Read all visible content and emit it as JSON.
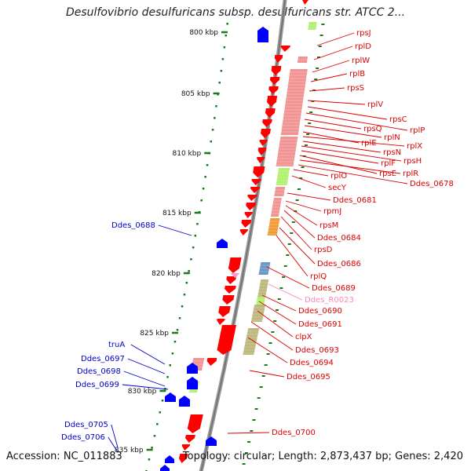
{
  "header": {
    "title": "Desulfovibrio desulfuricans subsp. desulfuricans str. ATCC 2..."
  },
  "footer": {
    "accession": "Accession: NC_011883",
    "summary": "Topology: circular; Length: 2,873,437 bp; Genes: 2,420"
  },
  "colors": {
    "backbone": "#888888",
    "tick": "#1a7a1a",
    "forward_gene": "#0000ff",
    "reverse_gene": "#ff0000",
    "rna": "#ff99cc",
    "label_forward": "#0000cc",
    "label_reverse": "#dd0000",
    "label_rna": "#ff88bb",
    "cog_pink": "#f08888",
    "cog_lime": "#a8f060",
    "cog_khaki": "#b8b070",
    "cog_steel": "#5a8ac0",
    "cog_orange": "#f09020"
  },
  "ruler": [
    {
      "label": "800 kbp"
    },
    {
      "label": "805 kbp"
    },
    {
      "label": "810 kbp"
    },
    {
      "label": "815 kbp"
    },
    {
      "label": "820 kbp"
    },
    {
      "label": "825 kbp"
    },
    {
      "label": "830 kbp"
    },
    {
      "label": "835 kbp"
    }
  ],
  "gene_labels": [
    {
      "text": "rpsJ",
      "strand": "reverse"
    },
    {
      "text": "rplD",
      "strand": "reverse"
    },
    {
      "text": "rplW",
      "strand": "reverse"
    },
    {
      "text": "rplB",
      "strand": "reverse"
    },
    {
      "text": "rpsS",
      "strand": "reverse"
    },
    {
      "text": "rplV",
      "strand": "reverse"
    },
    {
      "text": "rpsC",
      "strand": "reverse"
    },
    {
      "text": "rplP",
      "strand": "reverse"
    },
    {
      "text": "rpsQ",
      "strand": "reverse"
    },
    {
      "text": "rplN",
      "strand": "reverse"
    },
    {
      "text": "rplE",
      "strand": "reverse"
    },
    {
      "text": "rplX",
      "strand": "reverse"
    },
    {
      "text": "rpsN",
      "strand": "reverse"
    },
    {
      "text": "rpsH",
      "strand": "reverse"
    },
    {
      "text": "rplF",
      "strand": "reverse"
    },
    {
      "text": "rpsE",
      "strand": "reverse"
    },
    {
      "text": "rplR",
      "strand": "reverse"
    },
    {
      "text": "Ddes_0678",
      "strand": "reverse"
    },
    {
      "text": "rplO",
      "strand": "reverse"
    },
    {
      "text": "secY",
      "strand": "reverse"
    },
    {
      "text": "Ddes_0681",
      "strand": "reverse"
    },
    {
      "text": "rpmJ",
      "strand": "reverse"
    },
    {
      "text": "rpsM",
      "strand": "reverse"
    },
    {
      "text": "Ddes_0684",
      "strand": "reverse"
    },
    {
      "text": "rpsD",
      "strand": "reverse"
    },
    {
      "text": "Ddes_0686",
      "strand": "reverse"
    },
    {
      "text": "rplQ",
      "strand": "reverse"
    },
    {
      "text": "Ddes_0689",
      "strand": "reverse"
    },
    {
      "text": "Ddes_R0023",
      "strand": "rna"
    },
    {
      "text": "Ddes_0690",
      "strand": "reverse"
    },
    {
      "text": "Ddes_0691",
      "strand": "reverse"
    },
    {
      "text": "clpX",
      "strand": "reverse"
    },
    {
      "text": "Ddes_0693",
      "strand": "reverse"
    },
    {
      "text": "Ddes_0694",
      "strand": "reverse"
    },
    {
      "text": "Ddes_0695",
      "strand": "reverse"
    },
    {
      "text": "Ddes_0700",
      "strand": "reverse"
    },
    {
      "text": "Ddes_0688",
      "strand": "forward"
    },
    {
      "text": "truA",
      "strand": "forward"
    },
    {
      "text": "Ddes_0697",
      "strand": "forward"
    },
    {
      "text": "Ddes_0698",
      "strand": "forward"
    },
    {
      "text": "Ddes_0699",
      "strand": "forward"
    },
    {
      "text": "Ddes_0705",
      "strand": "forward"
    },
    {
      "text": "Ddes_0706",
      "strand": "forward"
    }
  ]
}
